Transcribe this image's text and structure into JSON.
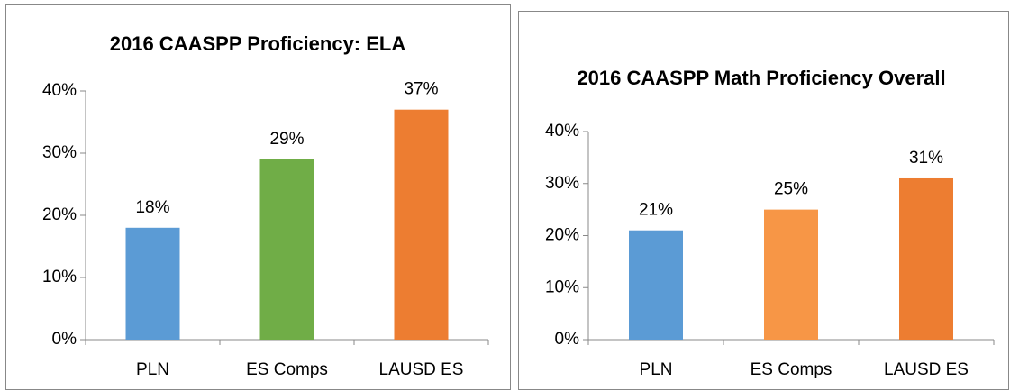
{
  "chart_data": [
    {
      "type": "bar",
      "title": "2016 CAASPP Proficiency: ELA",
      "categories": [
        "PLN",
        "ES Comps",
        "LAUSD ES"
      ],
      "values": [
        18,
        29,
        37
      ],
      "value_labels": [
        "18%",
        "29%",
        "37%"
      ],
      "colors": [
        "#5b9bd5",
        "#70ad47",
        "#ed7d31"
      ],
      "ylim": [
        0,
        40
      ],
      "yticks": [
        {
          "value": 0,
          "label": "0%"
        },
        {
          "value": 10,
          "label": "10%"
        },
        {
          "value": 20,
          "label": "20%"
        },
        {
          "value": 30,
          "label": "30%"
        },
        {
          "value": 40,
          "label": "40%"
        }
      ]
    },
    {
      "type": "bar",
      "title": "2016 CAASPP Math Proficiency Overall",
      "categories": [
        "PLN",
        "ES Comps",
        "LAUSD ES"
      ],
      "values": [
        21,
        25,
        31
      ],
      "value_labels": [
        "21%",
        "25%",
        "31%"
      ],
      "colors": [
        "#5b9bd5",
        "#f79646",
        "#ed7d31"
      ],
      "ylim": [
        0,
        40
      ],
      "yticks": [
        {
          "value": 0,
          "label": "0%"
        },
        {
          "value": 10,
          "label": "10%"
        },
        {
          "value": 20,
          "label": "20%"
        },
        {
          "value": 30,
          "label": "30%"
        },
        {
          "value": 40,
          "label": "40%"
        }
      ]
    }
  ]
}
